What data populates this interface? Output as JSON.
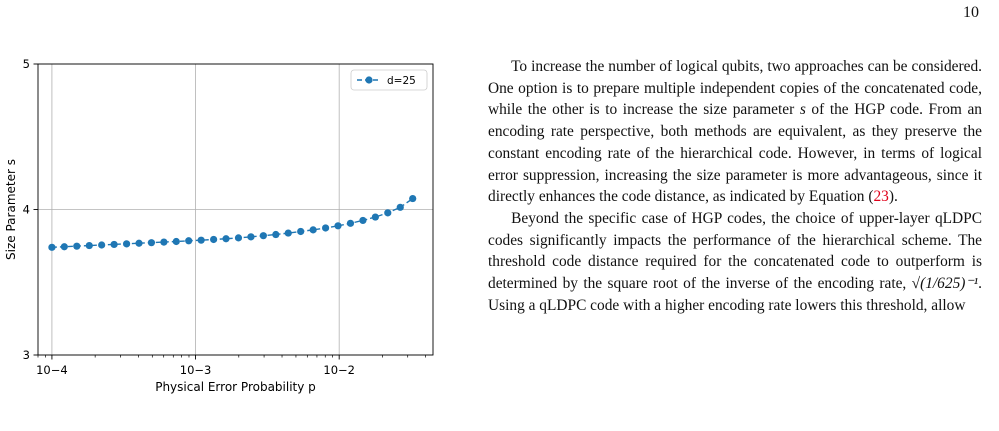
{
  "page": {
    "number": "10"
  },
  "chart_data": {
    "type": "line",
    "xlabel": "Physical Error Probability p",
    "ylabel": "Size Parameter s",
    "x_scale": "log",
    "xlim": [
      8e-05,
      0.045
    ],
    "ylim": [
      3,
      5
    ],
    "x_ticks": [
      0.0001,
      0.001,
      0.01
    ],
    "x_tick_labels": [
      "10−4",
      "10−3",
      "10−2"
    ],
    "y_ticks": [
      3,
      4,
      5
    ],
    "y_tick_labels": [
      "3",
      "4",
      "5"
    ],
    "grid": true,
    "legend_position": "top-right",
    "series": [
      {
        "name": "d=25",
        "color": "#1f77b4",
        "style": "dashed line with circle markers",
        "x": [
          0.0001,
          0.000122,
          0.000149,
          0.000182,
          0.000222,
          0.000271,
          0.000331,
          0.000404,
          0.000493,
          0.000602,
          0.000734,
          0.000896,
          0.001094,
          0.001336,
          0.00163,
          0.00199,
          0.00243,
          0.002966,
          0.003621,
          0.00442,
          0.005396,
          0.006587,
          0.008042,
          0.009817,
          0.011985,
          0.01463,
          0.01786,
          0.0218,
          0.02662,
          0.0325
        ],
        "y": [
          3.74,
          3.744,
          3.748,
          3.752,
          3.756,
          3.76,
          3.764,
          3.768,
          3.772,
          3.776,
          3.78,
          3.785,
          3.789,
          3.794,
          3.799,
          3.805,
          3.812,
          3.82,
          3.828,
          3.838,
          3.849,
          3.86,
          3.873,
          3.888,
          3.905,
          3.925,
          3.948,
          3.977,
          4.015,
          4.075
        ]
      }
    ]
  },
  "text": {
    "p1": {
      "a": "To increase the number of logical qubits, two approaches can be considered. One option is to prepare multiple independent copies of the concatenated code, while the other is to increase the size parameter ",
      "s": "s",
      "b": " of the HGP code. From an encoding rate perspective, both methods are equivalent, as they preserve the constant encoding rate of the hierarchical code. However, in terms of logical error suppression, increasing the size parameter is more advantageous, since it directly enhances the code distance, as indicated by Equation (",
      "ref": "23",
      "c": ")."
    },
    "p2": {
      "a": "Beyond the specific case of HGP codes, the choice of upper-layer qLDPC codes significantly impacts the performance of the hierarchical scheme. The threshold code distance required for the concatenated code to outperform is determined by the square root of the inverse of the encoding rate, ",
      "formula": "√(1/625)⁻¹",
      "b": ". Using a qLDPC code with a higher encoding rate lowers this threshold, allow"
    }
  }
}
